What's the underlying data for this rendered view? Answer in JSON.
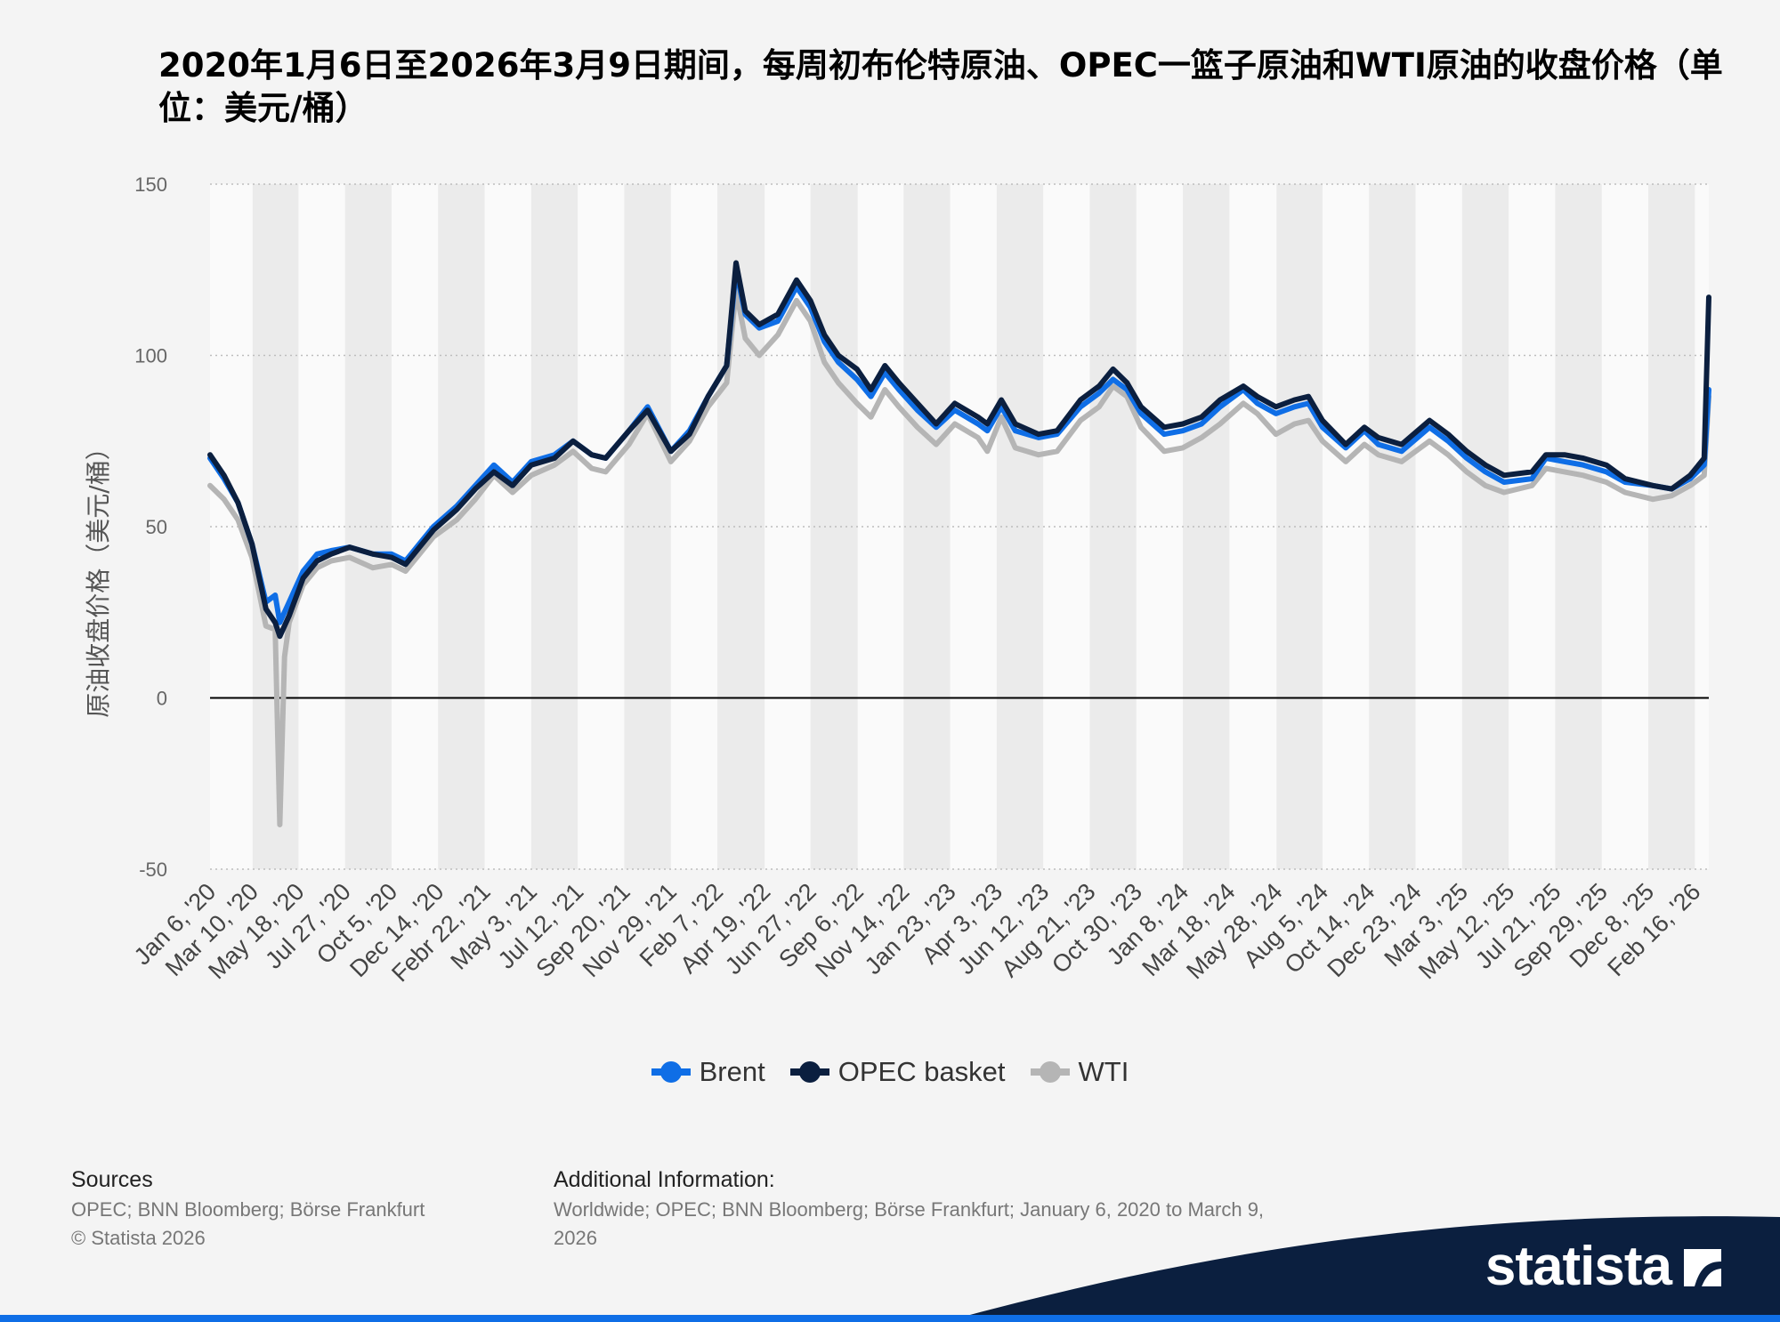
{
  "title": "2020年1月6日至2026年3月9日期间，每周初布伦特原油、OPEC一篮子原油和WTI原油的收盘价格（单位：美元/桶）",
  "chart_data": {
    "type": "line",
    "title": "2020年1月6日至2026年3月9日期间，每周初布伦特原油、OPEC一篮子原油和WTI原油的收盘价格（单位：美元/桶）",
    "xlabel": "",
    "ylabel": "原油收盘价格（美元/桶）",
    "ylim": [
      -50,
      150
    ],
    "yticks": [
      150,
      100,
      50,
      0,
      -50
    ],
    "xlim": [
      "2020-01-06",
      "2026-03-09"
    ],
    "grid": true,
    "legend_position": "bottom",
    "x_tick_labels": [
      {
        "date": "2020-01-06",
        "label": "Jan 6, '20"
      },
      {
        "date": "2020-03-10",
        "label": "Mar 10, '20"
      },
      {
        "date": "2020-05-18",
        "label": "May 18, '20"
      },
      {
        "date": "2020-07-27",
        "label": "Jul 27, '20"
      },
      {
        "date": "2020-10-05",
        "label": "Oct 5, '20"
      },
      {
        "date": "2020-12-14",
        "label": "Dec 14, '20"
      },
      {
        "date": "2021-02-22",
        "label": "Febr 22, '21"
      },
      {
        "date": "2021-05-03",
        "label": "May 3, '21"
      },
      {
        "date": "2021-07-12",
        "label": "Jul 12, '21"
      },
      {
        "date": "2021-09-20",
        "label": "Sep 20, '21"
      },
      {
        "date": "2021-11-29",
        "label": "Nov 29, '21"
      },
      {
        "date": "2022-02-07",
        "label": "Feb 7, '22"
      },
      {
        "date": "2022-04-19",
        "label": "Apr 19, '22"
      },
      {
        "date": "2022-06-27",
        "label": "Jun 27, '22"
      },
      {
        "date": "2022-09-06",
        "label": "Sep 6, '22"
      },
      {
        "date": "2022-11-14",
        "label": "Nov 14, '22"
      },
      {
        "date": "2023-01-23",
        "label": "Jan 23, '23"
      },
      {
        "date": "2023-04-03",
        "label": "Apr 3, '23"
      },
      {
        "date": "2023-06-12",
        "label": "Jun 12, '23"
      },
      {
        "date": "2023-08-21",
        "label": "Aug 21, '23"
      },
      {
        "date": "2023-10-30",
        "label": "Oct 30, '23"
      },
      {
        "date": "2024-01-08",
        "label": "Jan 8, '24"
      },
      {
        "date": "2024-03-18",
        "label": "Mar 18, '24"
      },
      {
        "date": "2024-05-28",
        "label": "May 28, '24"
      },
      {
        "date": "2024-08-05",
        "label": "Aug 5, '24"
      },
      {
        "date": "2024-10-14",
        "label": "Oct 14, '24"
      },
      {
        "date": "2024-12-23",
        "label": "Dec 23, '24"
      },
      {
        "date": "2025-03-03",
        "label": "Mar 3, '25"
      },
      {
        "date": "2025-05-12",
        "label": "May 12, '25"
      },
      {
        "date": "2025-07-21",
        "label": "Jul 21, '25"
      },
      {
        "date": "2025-09-29",
        "label": "Sep 29, '25"
      },
      {
        "date": "2025-12-08",
        "label": "Dec 8, '25"
      },
      {
        "date": "2026-02-16",
        "label": "Feb 16, '26"
      }
    ],
    "series": [
      {
        "name": "Brent",
        "color": "#0f6ee6",
        "x": [
          "2020-01-06",
          "2020-01-27",
          "2020-02-17",
          "2020-03-09",
          "2020-03-30",
          "2020-04-13",
          "2020-04-20",
          "2020-05-04",
          "2020-05-25",
          "2020-06-15",
          "2020-07-06",
          "2020-08-03",
          "2020-09-07",
          "2020-10-05",
          "2020-10-26",
          "2020-11-16",
          "2020-12-07",
          "2021-01-11",
          "2021-02-08",
          "2021-03-08",
          "2021-04-05",
          "2021-05-03",
          "2021-06-07",
          "2021-07-05",
          "2021-08-02",
          "2021-08-23",
          "2021-09-27",
          "2021-10-25",
          "2021-11-29",
          "2021-12-27",
          "2022-01-24",
          "2022-02-21",
          "2022-03-07",
          "2022-03-21",
          "2022-04-11",
          "2022-05-09",
          "2022-06-06",
          "2022-06-27",
          "2022-07-18",
          "2022-08-08",
          "2022-09-05",
          "2022-09-26",
          "2022-10-17",
          "2022-11-07",
          "2022-12-05",
          "2023-01-02",
          "2023-01-30",
          "2023-03-06",
          "2023-03-20",
          "2023-04-10",
          "2023-05-01",
          "2023-06-05",
          "2023-07-03",
          "2023-08-07",
          "2023-09-04",
          "2023-09-25",
          "2023-10-16",
          "2023-11-06",
          "2023-12-11",
          "2024-01-08",
          "2024-02-05",
          "2024-03-04",
          "2024-04-08",
          "2024-04-29",
          "2024-05-27",
          "2024-06-24",
          "2024-07-15",
          "2024-08-05",
          "2024-09-09",
          "2024-10-07",
          "2024-10-28",
          "2024-12-02",
          "2025-01-13",
          "2025-02-10",
          "2025-03-10",
          "2025-04-07",
          "2025-05-05",
          "2025-06-16",
          "2025-07-07",
          "2025-08-04",
          "2025-09-01",
          "2025-10-06",
          "2025-11-03",
          "2025-12-15",
          "2026-01-12",
          "2026-02-09",
          "2026-03-02",
          "2026-03-09"
        ],
        "y": [
          70,
          64,
          57,
          45,
          28,
          30,
          22,
          28,
          37,
          42,
          43,
          44,
          42,
          42,
          40,
          45,
          50,
          56,
          62,
          68,
          63,
          69,
          71,
          75,
          71,
          70,
          78,
          85,
          72,
          78,
          88,
          97,
          125,
          112,
          108,
          110,
          120,
          114,
          104,
          98,
          93,
          88,
          95,
          90,
          84,
          79,
          84,
          80,
          78,
          85,
          78,
          76,
          77,
          85,
          89,
          93,
          90,
          83,
          77,
          78,
          80,
          85,
          90,
          86,
          83,
          85,
          86,
          79,
          73,
          78,
          74,
          72,
          79,
          75,
          70,
          66,
          63,
          64,
          70,
          69,
          68,
          66,
          63,
          62,
          61,
          64,
          68,
          90
        ]
      },
      {
        "name": "OPEC basket",
        "color": "#0b1f3f",
        "x": [
          "2020-01-06",
          "2020-01-27",
          "2020-02-17",
          "2020-03-09",
          "2020-03-30",
          "2020-04-13",
          "2020-04-20",
          "2020-05-04",
          "2020-05-25",
          "2020-06-15",
          "2020-07-06",
          "2020-08-03",
          "2020-09-07",
          "2020-10-05",
          "2020-10-26",
          "2020-11-16",
          "2020-12-07",
          "2021-01-11",
          "2021-02-08",
          "2021-03-08",
          "2021-04-05",
          "2021-05-03",
          "2021-06-07",
          "2021-07-05",
          "2021-08-02",
          "2021-08-23",
          "2021-09-27",
          "2021-10-25",
          "2021-11-29",
          "2021-12-27",
          "2022-01-24",
          "2022-02-21",
          "2022-03-07",
          "2022-03-21",
          "2022-04-11",
          "2022-05-09",
          "2022-06-06",
          "2022-06-27",
          "2022-07-18",
          "2022-08-08",
          "2022-09-05",
          "2022-09-26",
          "2022-10-17",
          "2022-11-07",
          "2022-12-05",
          "2023-01-02",
          "2023-01-30",
          "2023-03-06",
          "2023-03-20",
          "2023-04-10",
          "2023-05-01",
          "2023-06-05",
          "2023-07-03",
          "2023-08-07",
          "2023-09-04",
          "2023-09-25",
          "2023-10-16",
          "2023-11-06",
          "2023-12-11",
          "2024-01-08",
          "2024-02-05",
          "2024-03-04",
          "2024-04-08",
          "2024-04-29",
          "2024-05-27",
          "2024-06-24",
          "2024-07-15",
          "2024-08-05",
          "2024-09-09",
          "2024-10-07",
          "2024-10-28",
          "2024-12-02",
          "2025-01-13",
          "2025-02-10",
          "2025-03-10",
          "2025-04-07",
          "2025-05-05",
          "2025-06-16",
          "2025-07-07",
          "2025-08-04",
          "2025-09-01",
          "2025-10-06",
          "2025-11-03",
          "2025-12-15",
          "2026-01-12",
          "2026-02-09",
          "2026-03-02",
          "2026-03-09"
        ],
        "y": [
          71,
          65,
          57,
          45,
          26,
          22,
          18,
          24,
          35,
          40,
          42,
          44,
          42,
          41,
          39,
          44,
          49,
          55,
          61,
          66,
          62,
          68,
          70,
          75,
          71,
          70,
          78,
          84,
          72,
          77,
          88,
          97,
          127,
          113,
          109,
          112,
          122,
          116,
          106,
          100,
          96,
          90,
          97,
          92,
          86,
          80,
          86,
          82,
          80,
          87,
          80,
          77,
          78,
          87,
          91,
          96,
          92,
          85,
          79,
          80,
          82,
          87,
          91,
          88,
          85,
          87,
          88,
          81,
          74,
          79,
          76,
          74,
          81,
          77,
          72,
          68,
          65,
          66,
          71,
          71,
          70,
          68,
          64,
          62,
          61,
          65,
          70,
          117
        ]
      },
      {
        "name": "WTI",
        "color": "#b5b5b5",
        "x": [
          "2020-01-06",
          "2020-01-27",
          "2020-02-17",
          "2020-03-09",
          "2020-03-30",
          "2020-04-13",
          "2020-04-20",
          "2020-04-27",
          "2020-05-04",
          "2020-05-25",
          "2020-06-15",
          "2020-07-06",
          "2020-08-03",
          "2020-09-07",
          "2020-10-05",
          "2020-10-26",
          "2020-11-16",
          "2020-12-07",
          "2021-01-11",
          "2021-02-08",
          "2021-03-08",
          "2021-04-05",
          "2021-05-03",
          "2021-06-07",
          "2021-07-05",
          "2021-08-02",
          "2021-08-23",
          "2021-09-27",
          "2021-10-25",
          "2021-11-29",
          "2021-12-27",
          "2022-01-24",
          "2022-02-21",
          "2022-03-07",
          "2022-03-21",
          "2022-04-11",
          "2022-05-09",
          "2022-06-06",
          "2022-06-27",
          "2022-07-18",
          "2022-08-08",
          "2022-09-05",
          "2022-09-26",
          "2022-10-17",
          "2022-11-07",
          "2022-12-05",
          "2023-01-02",
          "2023-01-30",
          "2023-03-06",
          "2023-03-20",
          "2023-04-10",
          "2023-05-01",
          "2023-06-05",
          "2023-07-03",
          "2023-08-07",
          "2023-09-04",
          "2023-09-25",
          "2023-10-16",
          "2023-11-06",
          "2023-12-11",
          "2024-01-08",
          "2024-02-05",
          "2024-03-04",
          "2024-04-08",
          "2024-04-29",
          "2024-05-27",
          "2024-06-24",
          "2024-07-15",
          "2024-08-05",
          "2024-09-09",
          "2024-10-07",
          "2024-10-28",
          "2024-12-02",
          "2025-01-13",
          "2025-02-10",
          "2025-03-10",
          "2025-04-07",
          "2025-05-05",
          "2025-06-16",
          "2025-07-07",
          "2025-08-04",
          "2025-09-01",
          "2025-10-06",
          "2025-11-03",
          "2025-12-15",
          "2026-01-12",
          "2026-02-09",
          "2026-03-02",
          "2026-03-09"
        ],
        "y": [
          62,
          58,
          52,
          41,
          21,
          20,
          -37,
          12,
          22,
          33,
          38,
          40,
          41,
          38,
          39,
          37,
          42,
          47,
          52,
          58,
          65,
          60,
          65,
          68,
          72,
          67,
          66,
          74,
          83,
          69,
          75,
          85,
          92,
          119,
          105,
          100,
          106,
          116,
          110,
          98,
          92,
          86,
          82,
          90,
          85,
          79,
          74,
          80,
          76,
          72,
          82,
          73,
          71,
          72,
          81,
          85,
          91,
          88,
          79,
          72,
          73,
          76,
          80,
          86,
          83,
          77,
          80,
          81,
          75,
          69,
          74,
          71,
          69,
          75,
          71,
          66,
          62,
          60,
          62,
          67,
          66,
          65,
          63,
          60,
          58,
          59,
          62,
          65,
          88
        ]
      }
    ]
  },
  "legend": [
    {
      "label": "Brent",
      "color": "#0f6ee6"
    },
    {
      "label": "OPEC basket",
      "color": "#0b1f3f"
    },
    {
      "label": "WTI",
      "color": "#b5b5b5"
    }
  ],
  "footer": {
    "sources_title": "Sources",
    "sources_text": "OPEC; BNN Bloomberg; Börse Frankfurt",
    "copyright": "© Statista 2026",
    "additional_title": "Additional Information:",
    "additional_text": "Worldwide; OPEC; BNN Bloomberg; Börse Frankfurt; January 6, 2020 to March 9, 2026"
  },
  "brand": {
    "name": "statista",
    "color": "#0b1f3f",
    "accent": "#0f6ee6"
  }
}
